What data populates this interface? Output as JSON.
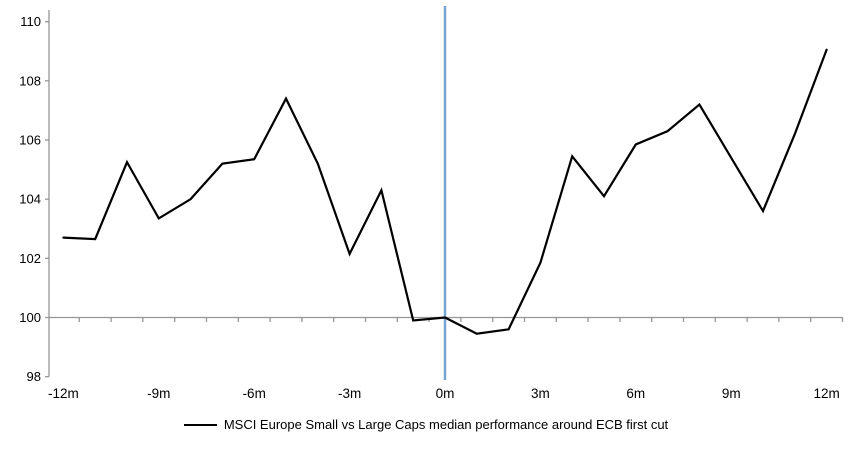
{
  "chart_data": {
    "type": "line",
    "title": "",
    "legend": "MSCI Europe Small vs Large Caps median performance around ECB first cut",
    "xlabel": "",
    "ylabel": "",
    "x_months": [
      -12,
      -11,
      -10,
      -9,
      -8,
      -7,
      -6,
      -5,
      -4,
      -3,
      -2,
      -1,
      0,
      1,
      2,
      3,
      4,
      5,
      6,
      7,
      8,
      9,
      10,
      11,
      12
    ],
    "values": [
      102.7,
      102.65,
      105.25,
      103.35,
      104.0,
      105.2,
      105.35,
      107.4,
      105.2,
      102.15,
      104.3,
      99.9,
      100.0,
      99.45,
      99.6,
      101.85,
      105.45,
      104.1,
      105.85,
      106.3,
      107.2,
      105.4,
      103.6,
      106.2,
      109.05
    ],
    "x_tick_labels": [
      {
        "month": -12,
        "label": "-12m"
      },
      {
        "month": -9,
        "label": "-9m"
      },
      {
        "month": -6,
        "label": "-6m"
      },
      {
        "month": -3,
        "label": "-3m"
      },
      {
        "month": 0,
        "label": "0m"
      },
      {
        "month": 3,
        "label": "3m"
      },
      {
        "month": 6,
        "label": "6m"
      },
      {
        "month": 9,
        "label": "9m"
      },
      {
        "month": 12,
        "label": "12m"
      }
    ],
    "y_ticks": [
      98,
      100,
      102,
      104,
      106,
      108,
      110
    ],
    "ylim": [
      98,
      110.5
    ],
    "xlim": [
      -12.5,
      12.5
    ],
    "event_line_month": 0,
    "axis_crosses_at": 100,
    "grid": "none",
    "legend_position": "bottom-center",
    "colors": {
      "series": "#000000",
      "event_line": "#74A6D4",
      "axis": "#969696",
      "text": "#000000",
      "background": "#FFFFFF"
    }
  }
}
